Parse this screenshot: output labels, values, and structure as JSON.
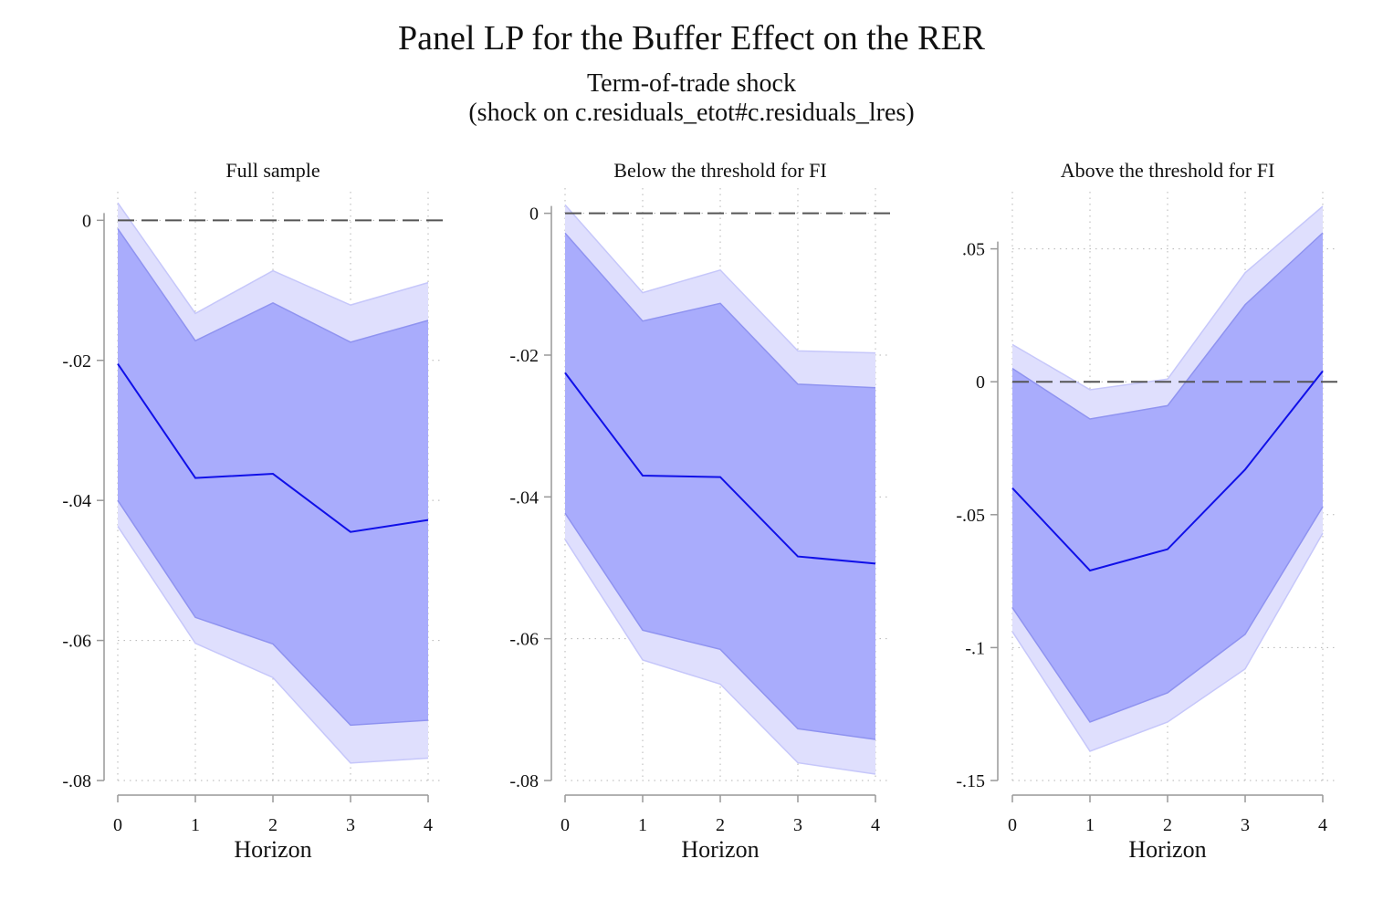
{
  "title": "Panel LP for the Buffer Effect on the RER",
  "subtitle_line1": "Term-of-trade shock",
  "subtitle_line2": "(shock on c.residuals_etot#c.residuals_lres)",
  "colors": {
    "line": "#1010e8",
    "band68": "#a9acfc",
    "band90": "#dfdffd",
    "band68_edge": "#8f93f0",
    "band90_edge": "#c6c7fa",
    "zero_line": "#555555",
    "axis": "#999999",
    "grid": "#b5b5b5"
  },
  "chart_data": [
    {
      "type": "line",
      "title": "Full sample",
      "xlabel": "Horizon",
      "ylabel": "",
      "x": [
        0,
        1,
        2,
        3,
        4
      ],
      "xtick_labels": [
        "0",
        "1",
        "2",
        "3",
        "4"
      ],
      "ylim": [
        -0.08,
        0.002
      ],
      "yticks": [
        0,
        -0.02,
        -0.04,
        -0.06,
        -0.08
      ],
      "ytick_labels": [
        "0",
        "-.02",
        "-.04",
        "-.06",
        "-.08"
      ],
      "grid": true,
      "zero_line": 0,
      "series": [
        {
          "role": "estimate",
          "values": [
            -0.0205,
            -0.0368,
            -0.0362,
            -0.0445,
            -0.0428
          ]
        },
        {
          "role": "band-68-upper",
          "values": [
            -0.0012,
            -0.0172,
            -0.0118,
            -0.0174,
            -0.0143
          ]
        },
        {
          "role": "band-68-lower",
          "values": [
            -0.04,
            -0.0567,
            -0.0605,
            -0.0721,
            -0.0714
          ]
        },
        {
          "role": "band-90-upper",
          "values": [
            0.0025,
            -0.0133,
            -0.0072,
            -0.0121,
            -0.0089
          ]
        },
        {
          "role": "band-90-lower",
          "values": [
            -0.0437,
            -0.0604,
            -0.0653,
            -0.0775,
            -0.0768
          ]
        }
      ]
    },
    {
      "type": "line",
      "title": "Below the threshold for FI",
      "xlabel": "Horizon",
      "ylabel": "",
      "x": [
        0,
        1,
        2,
        3,
        4
      ],
      "xtick_labels": [
        "0",
        "1",
        "2",
        "3",
        "4"
      ],
      "ylim": [
        -0.08,
        0.0015
      ],
      "yticks": [
        0,
        -0.02,
        -0.04,
        -0.06,
        -0.08
      ],
      "ytick_labels": [
        "0",
        "-.02",
        "-.04",
        "-.06",
        "-.08"
      ],
      "grid": true,
      "zero_line": 0,
      "series": [
        {
          "role": "estimate",
          "values": [
            -0.0225,
            -0.037,
            -0.0372,
            -0.0484,
            -0.0494
          ]
        },
        {
          "role": "band-68-upper",
          "values": [
            -0.0028,
            -0.0152,
            -0.0127,
            -0.0241,
            -0.0246
          ]
        },
        {
          "role": "band-68-lower",
          "values": [
            -0.0423,
            -0.0588,
            -0.0615,
            -0.0727,
            -0.0742
          ]
        },
        {
          "role": "band-90-upper",
          "values": [
            0.0012,
            -0.0112,
            -0.008,
            -0.0194,
            -0.0197
          ]
        },
        {
          "role": "band-90-lower",
          "values": [
            -0.046,
            -0.063,
            -0.0664,
            -0.0775,
            -0.0791
          ]
        }
      ]
    },
    {
      "type": "line",
      "title": "Above the threshold for FI",
      "xlabel": "Horizon",
      "ylabel": "",
      "x": [
        0,
        1,
        2,
        3,
        4
      ],
      "xtick_labels": [
        "0",
        "1",
        "2",
        "3",
        "4"
      ],
      "ylim": [
        -0.15,
        0.066
      ],
      "yticks": [
        0.05,
        0,
        -0.05,
        -0.1,
        -0.15
      ],
      "ytick_labels": [
        ".05",
        "0",
        "-.05",
        "-.1",
        "-.15"
      ],
      "grid": true,
      "zero_line": 0,
      "series": [
        {
          "role": "estimate",
          "values": [
            -0.04,
            -0.071,
            -0.063,
            -0.033,
            0.004
          ]
        },
        {
          "role": "band-68-upper",
          "values": [
            0.005,
            -0.014,
            -0.009,
            0.029,
            0.056
          ]
        },
        {
          "role": "band-68-lower",
          "values": [
            -0.085,
            -0.128,
            -0.117,
            -0.095,
            -0.047
          ]
        },
        {
          "role": "band-90-upper",
          "values": [
            0.014,
            -0.003,
            0.001,
            0.041,
            0.066
          ]
        },
        {
          "role": "band-90-lower",
          "values": [
            -0.094,
            -0.139,
            -0.128,
            -0.108,
            -0.057
          ]
        }
      ]
    }
  ]
}
